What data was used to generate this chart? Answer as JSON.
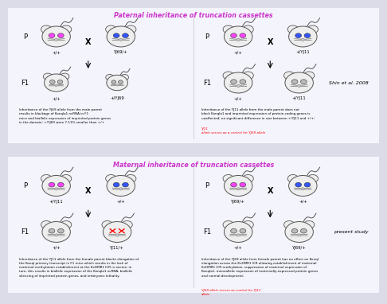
{
  "title_top": "Paternal inheritance of truncation cassettes",
  "title_bottom": "Maternal inheritance of truncation cassettes",
  "bg_color": "#dcdce8",
  "panel_bg": "#f4f4fc",
  "title_color": "#cc33cc",
  "border_color": "#999999",
  "top_left": {
    "P_label": "P",
    "female_label": "+/+",
    "male_label": "YJ69/+",
    "F1_label": "F1",
    "F1_female": "+/+",
    "F1_male": "+/YJ69",
    "desc": "Inheritance of the YJ69 allele from the male parent\nresults in blockage of KonqIa1 ncRNA in F1\nmice and biallelic expression of imprinted protein genes\nin the domain; +/YJ69 were 7-11% smaller than +/+"
  },
  "top_right": {
    "P_label": "P",
    "female_label": "+/+",
    "male_label": "+/YJ11",
    "F1_label": "F1",
    "F1_female": "+/+",
    "F1_male": "+/YJ11",
    "ref": "Shin et al. 2008",
    "desc_black": "Inheritance of the YJ11 allele from the male parent does not\nblock KonqIa1 and imprinted expression of protein coding genes is\nunaffected; no significant difference in size between +/YJ11 and +/+;",
    "desc_red": "YJ11\nallele serves as a control for YJ69 allele"
  },
  "bottom_left": {
    "P_label": "P",
    "female_label": "+/YJ11",
    "male_label": "+/+",
    "F1_label": "F1",
    "F1_female": "+/+",
    "F1_male": "YJ11/+",
    "desc": "Inheritance of the YJ11 allele from the female parent blocks elongation of\nthe KonqI primary transcript in F1 mice which results in the lack of\nmaternal methylation establishment at the KvDMR1 ICR in ooctes; in\nturn, this results in biallelic expression of the KonqIa1 ncRNA, biallelic\nsilencing of imprinted protein genes, and embryonic lethality."
  },
  "bottom_right": {
    "P_label": "P",
    "female_label": "YJ69/+",
    "male_label": "+/+",
    "F1_label": "F1",
    "F1_female": "+/+",
    "F1_male": "YJ69/+",
    "ref": "present study",
    "desc_black": "Inheritance of the YJ69 allele from female parent has no effect on KonqI\nelongation across the KvDMR1 ICR allowing establishment of maternal\nKvDMR1 ICR methylation, suppression of maternal expression of\nKonqIa1, monoallelic expression of maternally-expressed protein genes\nand normal development;",
    "desc_red": "YJ69 allele serves as control for YJ11\nallele."
  },
  "pink": "#ff44ff",
  "blue": "#3355ff",
  "gray_eye": "#bbbbbb",
  "mouse_ec": "#555555",
  "mouse_fc": "#eeeeee"
}
